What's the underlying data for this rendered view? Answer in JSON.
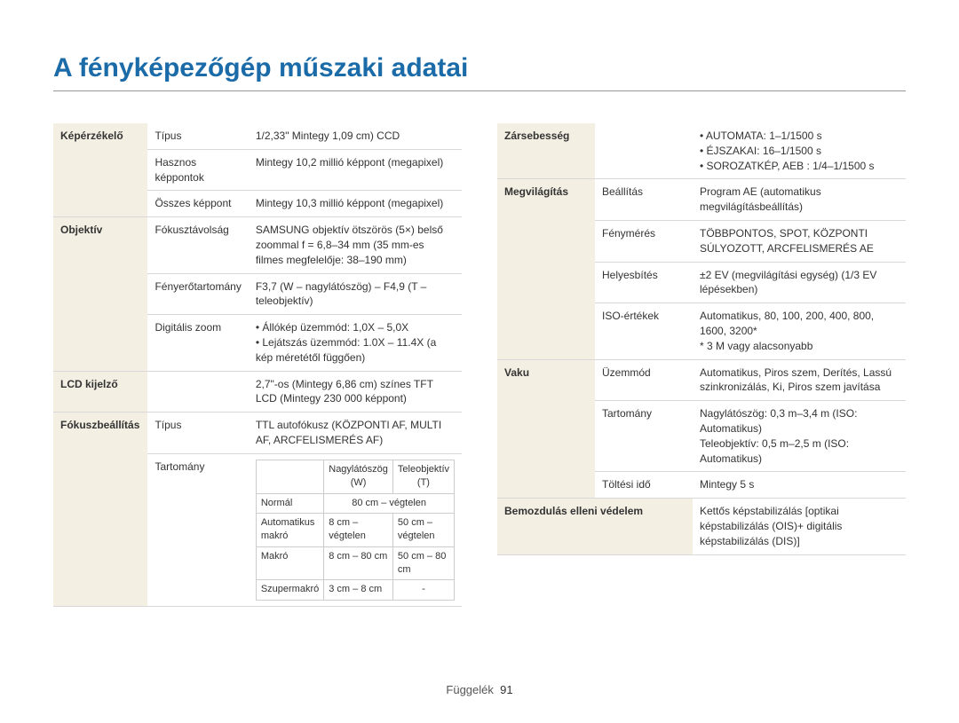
{
  "title": "A fényképezőgép műszaki adatai",
  "footer": {
    "label": "Függelék",
    "page": "91"
  },
  "left": {
    "imageSensor": {
      "label": "Képérzékelő",
      "rows": [
        {
          "sub": "Típus",
          "val": "1/2,33\" Mintegy 1,09 cm) CCD"
        },
        {
          "sub": "Hasznos képpontok",
          "val": "Mintegy 10,2 millió képpont (megapixel)"
        },
        {
          "sub": "Összes képpont",
          "val": "Mintegy 10,3 millió képpont (megapixel)"
        }
      ]
    },
    "lens": {
      "label": "Objektív",
      "rows": [
        {
          "sub": "Fókusztávolság",
          "val": "SAMSUNG objektív ötszörös (5×) belső zoommal f = 6,8–34 mm (35 mm-es filmes megfelelője: 38–190 mm)"
        },
        {
          "sub": "Fényerőtartomány",
          "val": "F3,7 (W – nagylátószög) – F4,9 (T – teleobjektív)"
        }
      ],
      "digitalZoom": {
        "sub": "Digitális zoom",
        "items": [
          "Állókép üzemmód: 1,0X – 5,0X",
          "Lejátszás üzemmód: 1.0X – 11.4X (a kép méretétől függően)"
        ]
      }
    },
    "lcd": {
      "label": "LCD kijelző",
      "val": "2,7\"-os (Mintegy 6,86 cm) színes TFT LCD (Mintegy 230 000 képpont)"
    },
    "focus": {
      "label": "Fókuszbeállítás",
      "typeRow": {
        "sub": "Típus",
        "val": "TTL autofókusz (KÖZPONTI AF, MULTI AF, ARCFELISMERÉS AF)"
      },
      "rangeLabel": "Tartomány",
      "rangeTable": {
        "headers": [
          "",
          "Nagylátószög (W)",
          "Teleobjektív (T)"
        ],
        "rows": [
          [
            "Normál",
            "80 cm – végtelen",
            ""
          ],
          [
            "Automatikus makró",
            "8 cm – végtelen",
            "50 cm – végtelen"
          ],
          [
            "Makró",
            "8 cm – 80 cm",
            "50 cm – 80 cm"
          ],
          [
            "Szupermakró",
            "3 cm – 8 cm",
            "-"
          ]
        ]
      }
    }
  },
  "right": {
    "shutter": {
      "label": "Zársebesség",
      "items": [
        "AUTOMATA: 1–1/1500 s",
        "ÉJSZAKAI: 16–1/1500 s",
        "SOROZATKÉP, AEB : 1/4–1/1500 s"
      ]
    },
    "exposure": {
      "label": "Megvilágítás",
      "rows": [
        {
          "sub": "Beállítás",
          "val": "Program AE (automatikus megvilágításbeállítás)"
        },
        {
          "sub": "Fénymérés",
          "val": "TÖBBPONTOS, SPOT, KÖZPONTI SÚLYOZOTT, ARCFELISMERÉS AE"
        },
        {
          "sub": "Helyesbítés",
          "val": "±2 EV (megvilágítási egység) (1/3 EV lépésekben)"
        },
        {
          "sub": "ISO-értékek",
          "val": "Automatikus, 80, 100, 200, 400, 800, 1600, 3200*\n* 3 M vagy alacsonyabb"
        }
      ]
    },
    "flash": {
      "label": "Vaku",
      "rows": [
        {
          "sub": "Üzemmód",
          "val": "Automatikus, Piros szem, Derítés, Lassú szinkronizálás, Ki, Piros szem javítása"
        },
        {
          "sub": "Tartomány",
          "val": "Nagylátószög: 0,3 m–3,4 m (ISO: Automatikus)\nTeleobjektív: 0,5 m–2,5 m (ISO: Automatikus)"
        },
        {
          "sub": "Töltési idő",
          "val": "Mintegy 5 s"
        }
      ]
    },
    "stabil": {
      "label": "Bemozdulás elleni védelem",
      "val": "Kettős képstabilizálás [optikai képstabilizálás (OIS)+ digitális képstabilizálás (DIS)]"
    }
  }
}
